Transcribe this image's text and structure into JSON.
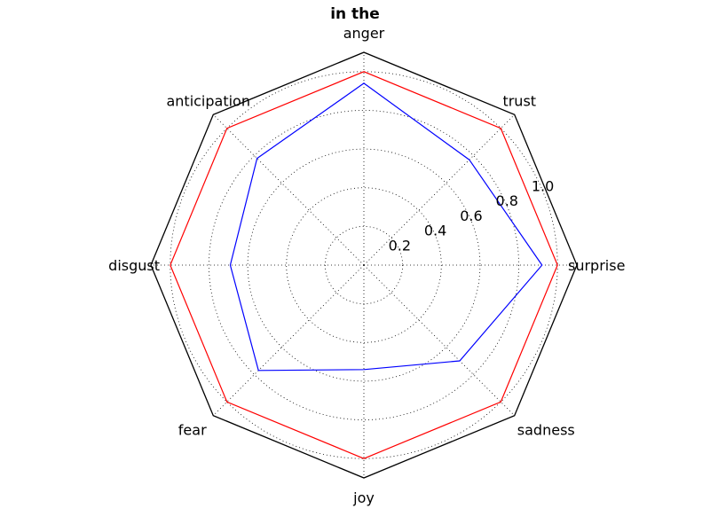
{
  "chart_data": {
    "type": "radar",
    "title": "in the",
    "categories": [
      "surprise",
      "trust",
      "anger",
      "anticipation",
      "disgust",
      "fear",
      "joy",
      "sadness"
    ],
    "radial_ticks": [
      "0.2",
      "0.4",
      "0.6",
      "0.8",
      "1.0"
    ],
    "rlim": [
      0,
      1.1
    ],
    "grid": true,
    "series": [
      {
        "color": "#ff0000",
        "values": [
          1.0,
          1.0,
          1.0,
          1.0,
          1.0,
          1.0,
          1.0,
          1.0
        ]
      },
      {
        "color": "#0000ff",
        "values": [
          0.92,
          0.77,
          0.94,
          0.78,
          0.69,
          0.77,
          0.54,
          0.7
        ]
      }
    ],
    "frame_color": "#000000"
  }
}
